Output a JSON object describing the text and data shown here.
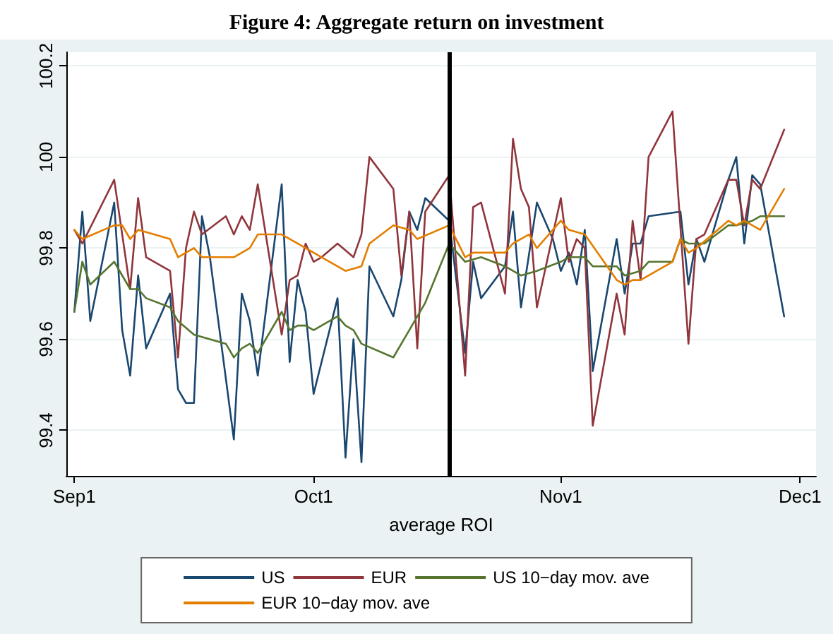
{
  "chart_data": {
    "type": "line",
    "title": "Figure 4: Aggregate return on investment",
    "xlabel": "average ROI",
    "xlim": [
      "--08-31",
      "--12-03"
    ],
    "xticks": [
      {
        "value": "--09-01",
        "label": "Sep1"
      },
      {
        "value": "--10-01",
        "label": "Oct1"
      },
      {
        "value": "--11-01",
        "label": "Nov1"
      },
      {
        "value": "--12-01",
        "label": "Dec1"
      }
    ],
    "ylim": [
      99.3,
      100.23
    ],
    "yticks": [
      99.4,
      99.6,
      99.8,
      100,
      100.2
    ],
    "grid": "y",
    "legend": "bottom",
    "marker": "none",
    "line_style": "solid",
    "ref_lines": [
      {
        "axis": "x",
        "value": "--10-18",
        "label": null,
        "color": "#000000"
      }
    ],
    "series": [
      {
        "name": "US",
        "color": "#1a476f",
        "x": [
          "--09-01",
          "--09-02",
          "--09-03",
          "--09-06",
          "--09-07",
          "--09-08",
          "--09-09",
          "--09-10",
          "--09-13",
          "--09-14",
          "--09-15",
          "--09-16",
          "--09-17",
          "--09-18",
          "--09-21",
          "--09-22",
          "--09-23",
          "--09-24",
          "--09-27",
          "--09-28",
          "--09-29",
          "--09-30",
          "--10-01",
          "--10-04",
          "--10-05",
          "--10-06",
          "--10-07",
          "--10-08",
          "--10-11",
          "--10-12",
          "--10-13",
          "--10-14",
          "--10-15",
          "--10-18",
          "--10-20",
          "--10-21",
          "--10-22",
          "--10-25",
          "--10-26",
          "--10-27",
          "--10-29",
          "--10-31",
          "--11-01",
          "--11-02",
          "--11-03",
          "--11-04",
          "--11-05",
          "--11-08",
          "--11-09",
          "--11-10",
          "--11-11",
          "--11-12",
          "--11-16",
          "--11-17",
          "--11-18",
          "--11-19",
          "--11-22",
          "--11-23",
          "--11-24",
          "--11-25",
          "--11-26",
          "--11-29"
        ],
        "values": [
          99.66,
          99.88,
          99.64,
          99.9,
          99.62,
          99.52,
          99.74,
          99.58,
          99.7,
          99.49,
          99.46,
          99.46,
          99.87,
          99.78,
          99.38,
          99.7,
          99.64,
          99.52,
          99.94,
          99.55,
          99.73,
          99.66,
          99.48,
          99.69,
          99.34,
          99.6,
          99.33,
          99.76,
          99.65,
          99.73,
          99.88,
          99.84,
          99.91,
          99.86,
          99.57,
          99.77,
          99.69,
          99.76,
          99.88,
          99.67,
          99.9,
          99.82,
          99.75,
          99.79,
          99.72,
          99.84,
          99.53,
          99.82,
          99.7,
          99.81,
          99.81,
          99.87,
          99.88,
          99.72,
          99.82,
          99.77,
          99.95,
          100.0,
          99.81,
          99.96,
          99.94,
          99.65
        ]
      },
      {
        "name": "EUR",
        "color": "#90353b",
        "x": [
          "--09-01",
          "--09-02",
          "--09-06",
          "--09-08",
          "--09-09",
          "--09-10",
          "--09-13",
          "--09-14",
          "--09-15",
          "--09-16",
          "--09-17",
          "--09-20",
          "--09-21",
          "--09-22",
          "--09-23",
          "--09-24",
          "--09-27",
          "--09-28",
          "--09-29",
          "--09-30",
          "--10-01",
          "--10-02",
          "--10-04",
          "--10-06",
          "--10-07",
          "--10-08",
          "--10-11",
          "--10-12",
          "--10-13",
          "--10-14",
          "--10-15",
          "--10-18",
          "--10-20",
          "--10-21",
          "--10-22",
          "--10-25",
          "--10-26",
          "--10-27",
          "--10-28",
          "--10-29",
          "--11-01",
          "--11-02",
          "--11-03",
          "--11-04",
          "--11-05",
          "--11-08",
          "--11-09",
          "--11-10",
          "--11-11",
          "--11-12",
          "--11-15",
          "--11-17",
          "--11-18",
          "--11-19",
          "--11-22",
          "--11-23",
          "--11-24",
          "--11-25",
          "--11-26",
          "--11-29"
        ],
        "values": [
          99.84,
          99.81,
          99.95,
          99.71,
          99.91,
          99.78,
          99.75,
          99.56,
          99.8,
          99.88,
          99.83,
          99.87,
          99.83,
          99.87,
          99.84,
          99.94,
          99.61,
          99.73,
          99.74,
          99.81,
          99.77,
          99.78,
          99.81,
          99.78,
          99.83,
          100.0,
          99.93,
          99.74,
          99.88,
          99.58,
          99.88,
          99.96,
          99.52,
          99.89,
          99.9,
          99.7,
          100.04,
          99.93,
          99.89,
          99.67,
          99.91,
          99.77,
          99.82,
          99.8,
          99.41,
          99.7,
          99.61,
          99.86,
          99.73,
          100.0,
          100.1,
          99.59,
          99.82,
          99.83,
          99.95,
          99.95,
          99.85,
          99.95,
          99.93,
          100.06
        ]
      },
      {
        "name": "US 10−day mov. ave",
        "color": "#55752f",
        "x": [
          "--09-01",
          "--09-02",
          "--09-03",
          "--09-06",
          "--09-08",
          "--09-09",
          "--09-10",
          "--09-13",
          "--09-14",
          "--09-16",
          "--09-20",
          "--09-21",
          "--09-22",
          "--09-23",
          "--09-24",
          "--09-27",
          "--09-28",
          "--09-29",
          "--09-30",
          "--10-01",
          "--10-04",
          "--10-05",
          "--10-06",
          "--10-07",
          "--10-11",
          "--10-13",
          "--10-15",
          "--10-18",
          "--10-20",
          "--10-22",
          "--10-25",
          "--10-27",
          "--10-29",
          "--11-01",
          "--11-02",
          "--11-03",
          "--11-04",
          "--11-05",
          "--11-08",
          "--11-09",
          "--11-11",
          "--11-12",
          "--11-15",
          "--11-16",
          "--11-17",
          "--11-19",
          "--11-22",
          "--11-23",
          "--11-25",
          "--11-26",
          "--11-29"
        ],
        "values": [
          99.66,
          99.77,
          99.72,
          99.77,
          99.71,
          99.71,
          99.69,
          99.67,
          99.64,
          99.61,
          99.59,
          99.56,
          99.58,
          99.59,
          99.57,
          99.66,
          99.62,
          99.63,
          99.63,
          99.62,
          99.65,
          99.63,
          99.62,
          99.59,
          99.56,
          99.62,
          99.68,
          99.81,
          99.77,
          99.78,
          99.76,
          99.74,
          99.75,
          99.77,
          99.78,
          99.78,
          99.78,
          99.76,
          99.76,
          99.74,
          99.75,
          99.77,
          99.77,
          99.82,
          99.81,
          99.81,
          99.85,
          99.85,
          99.86,
          99.87,
          99.87
        ]
      },
      {
        "name": "EUR 10−day mov. ave",
        "color": "#e37e00",
        "x": [
          "--09-01",
          "--09-02",
          "--09-06",
          "--09-07",
          "--09-08",
          "--09-09",
          "--09-13",
          "--09-14",
          "--09-16",
          "--09-17",
          "--09-21",
          "--09-23",
          "--09-24",
          "--09-27",
          "--09-29",
          "--10-01",
          "--10-02",
          "--10-05",
          "--10-07",
          "--10-08",
          "--10-11",
          "--10-13",
          "--10-14",
          "--10-18",
          "--10-20",
          "--10-21",
          "--10-25",
          "--10-26",
          "--10-28",
          "--10-29",
          "--11-01",
          "--11-02",
          "--11-04",
          "--11-08",
          "--11-09",
          "--11-10",
          "--11-11",
          "--11-15",
          "--11-16",
          "--11-17",
          "--11-18",
          "--11-22",
          "--11-23",
          "--11-24",
          "--11-26",
          "--11-29"
        ],
        "values": [
          99.84,
          99.82,
          99.85,
          99.85,
          99.82,
          99.84,
          99.82,
          99.78,
          99.8,
          99.78,
          99.78,
          99.8,
          99.83,
          99.83,
          99.81,
          99.79,
          99.78,
          99.75,
          99.76,
          99.81,
          99.85,
          99.84,
          99.82,
          99.85,
          99.78,
          99.79,
          99.79,
          99.81,
          99.83,
          99.8,
          99.86,
          99.84,
          99.83,
          99.73,
          99.72,
          99.73,
          99.73,
          99.77,
          99.82,
          99.79,
          99.8,
          99.86,
          99.85,
          99.86,
          99.84,
          99.93
        ]
      }
    ]
  }
}
